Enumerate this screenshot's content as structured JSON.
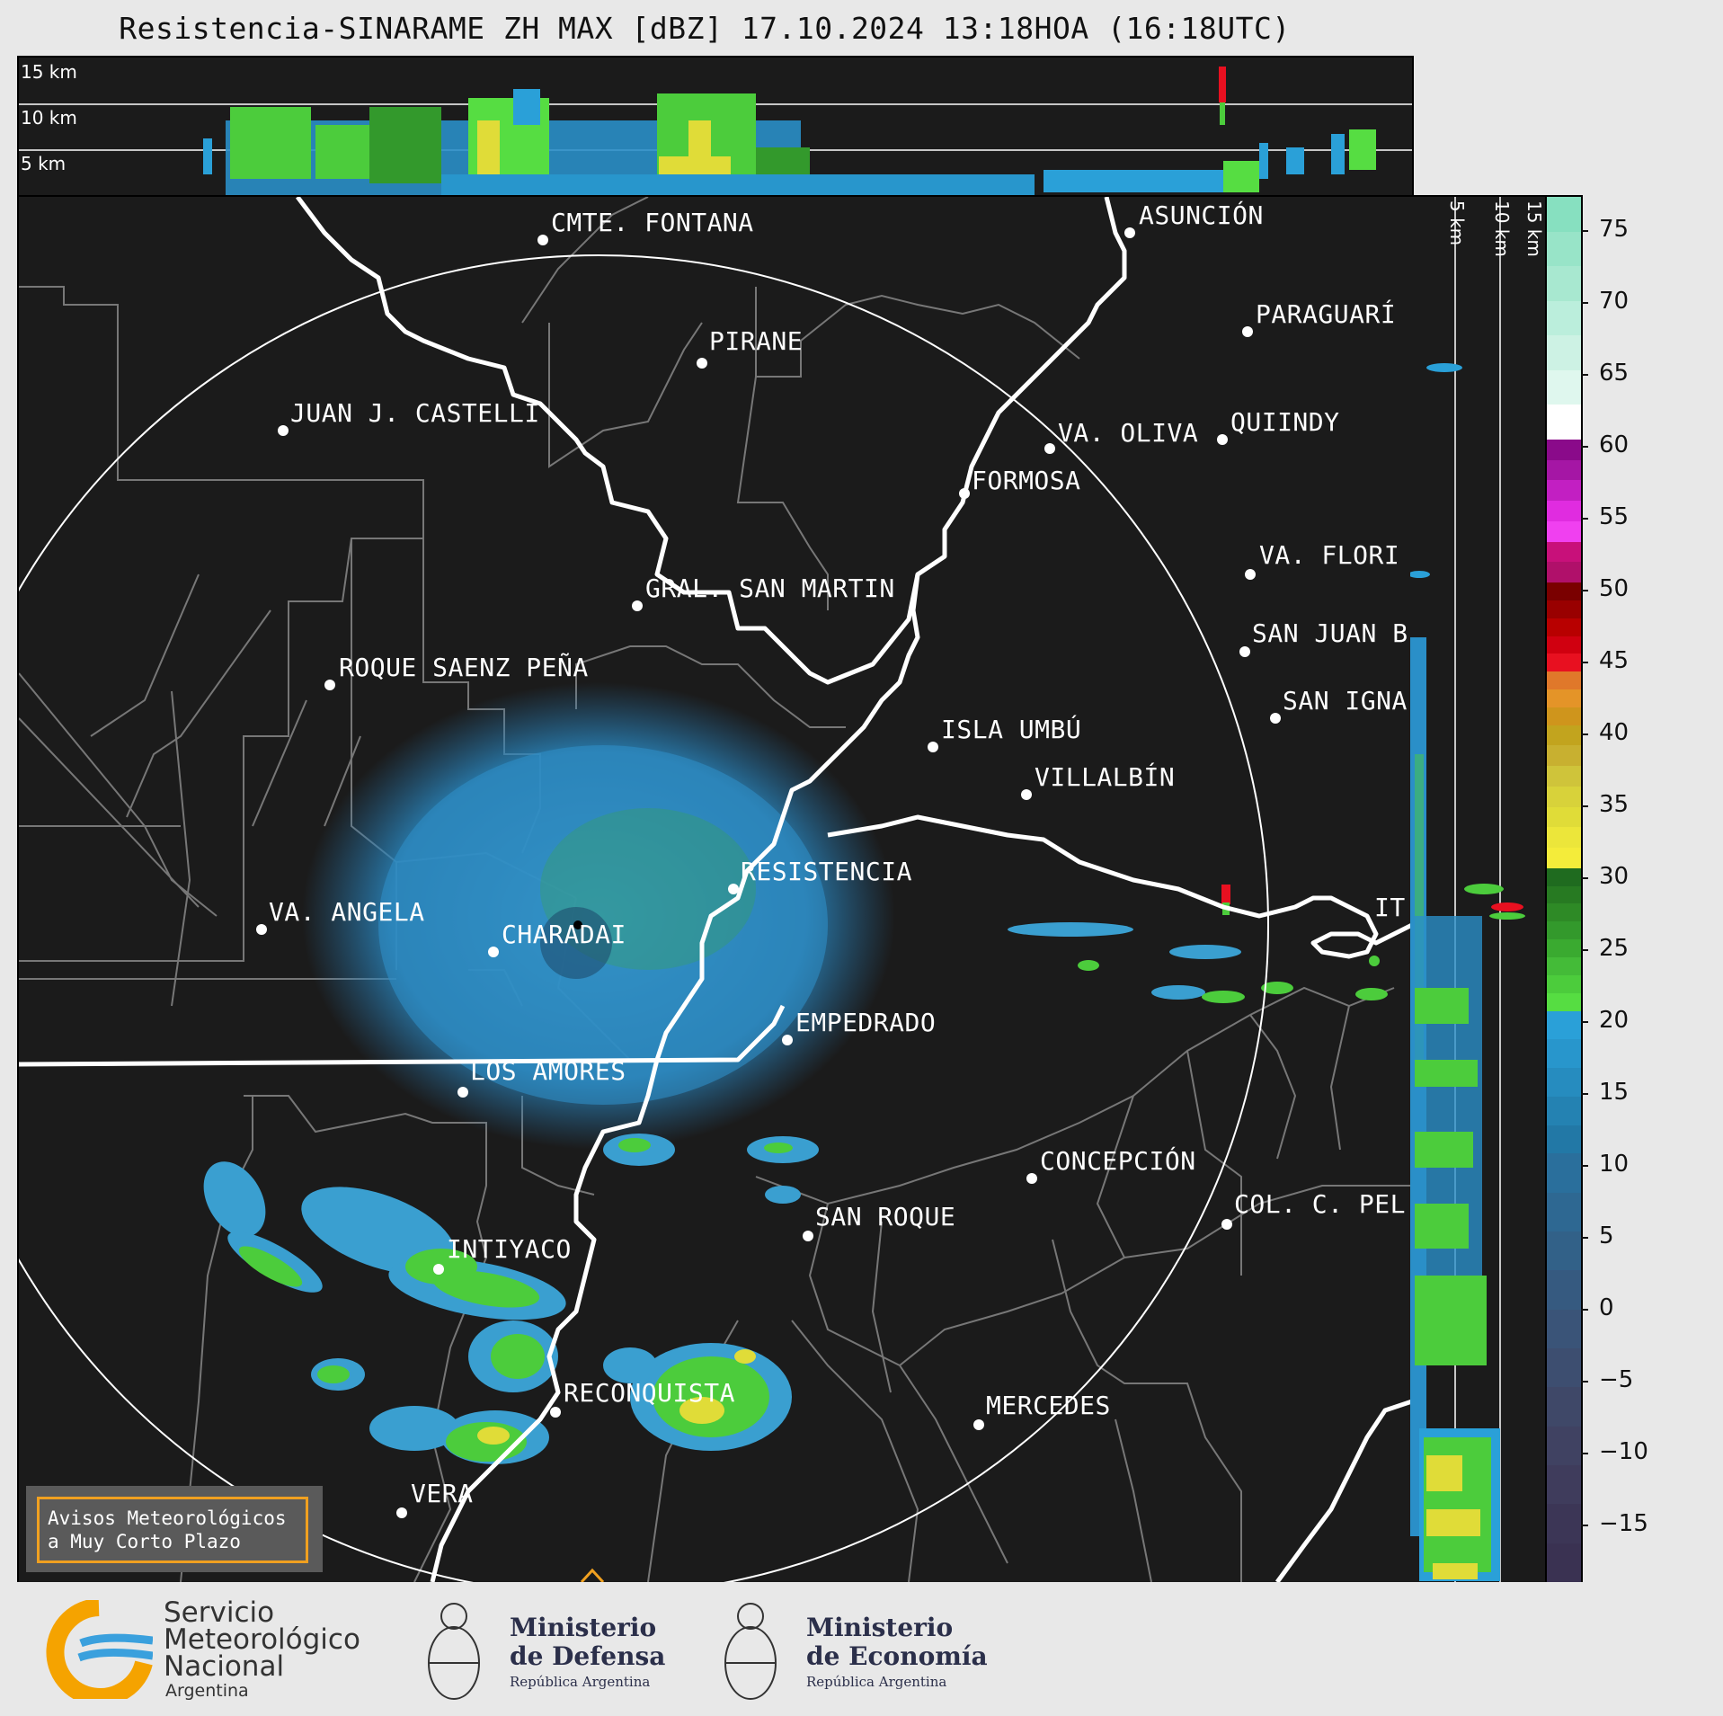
{
  "title": "Resistencia-SINARAME ZH MAX [dBZ] 17.10.2024 13:18HOA (16:18UTC)",
  "xsec_top": {
    "labels": [
      "15 km",
      "10 km",
      "5 km"
    ]
  },
  "xsec_right": {
    "labels": [
      "5 km",
      "10 km",
      "15 km"
    ]
  },
  "colorbar": {
    "ticks": [
      "75",
      "70",
      "65",
      "60",
      "55",
      "50",
      "45",
      "40",
      "35",
      "30",
      "25",
      "20",
      "15",
      "10",
      "5",
      "0",
      "−5",
      "−10",
      "−15"
    ],
    "colors": {
      "band_75_60": [
        "#87e0c0",
        "#98e4c8",
        "#a8e8d0",
        "#bbeedc",
        "#cdf2e4",
        "#dff7ee",
        "#ffffff"
      ],
      "band_60_50": [
        "#8a0a8a",
        "#a516a5",
        "#c21fc2",
        "#e02ce0",
        "#f040f0",
        "#c8107a",
        "#b0106a"
      ],
      "band_50_40": [
        "#7a0000",
        "#990000",
        "#b80000",
        "#d00010",
        "#e81020",
        "#e0782a",
        "#e49428",
        "#cf951c"
      ],
      "band_40_30": [
        "#c2a41e",
        "#c8b030",
        "#cfc43a",
        "#d8d23a",
        "#e0dc38",
        "#ece63a",
        "#f4ec3a"
      ],
      "band_30_20": [
        "#1f6b1f",
        "#277a22",
        "#2e8a26",
        "#33992c",
        "#3aaa30",
        "#44bb38",
        "#4ccc3c",
        "#56dd42"
      ],
      "band_20_10": [
        "#2aa0d8",
        "#2896cc",
        "#268cbf",
        "#2482b2",
        "#2278a6"
      ],
      "band_10_m20": [
        "#2a6f9c",
        "#2e6892",
        "#326188",
        "#365a80",
        "#3a5478",
        "#3d4e70",
        "#3f4868",
        "#404262",
        "#3f3c5c",
        "#3c3656",
        "#3a3252"
      ]
    }
  },
  "cities": [
    "CMTE. FONTANA",
    "ASUNCIÓN",
    "PIRANE",
    "PARAGUARÍ",
    "JUAN J. CASTELLI",
    "VA. OLIVA",
    "QUIINDY",
    "FORMOSA",
    "VA. FLORI",
    "GRAL. SAN MARTIN",
    "SAN JUAN B",
    "ROQUE SAENZ PEÑA",
    "SAN IGNA",
    "ISLA UMBÚ",
    "VILLALBÍN",
    "RESISTENCIA",
    "IT",
    "VA. ANGELA",
    "CHARADAI",
    "EMPEDRADO",
    "LOS AMORES",
    "CONCEPCIÓN",
    "SAN ROQUE",
    "COL. C. PEL",
    "INTIYACO",
    "RECONQUISTA",
    "MERCEDES",
    "VERA"
  ],
  "notice": {
    "line1": "Avisos Meteorológicos",
    "line2": "a Muy Corto Plazo"
  },
  "footer": {
    "smn": {
      "line1": "Servicio",
      "line2": "Meteorológico",
      "line3": "Nacional",
      "line4": "Argentina"
    },
    "defensa": {
      "line1": "Ministerio",
      "line2": "de Defensa",
      "line3": "República Argentina"
    },
    "economia": {
      "line1": "Ministerio",
      "line2": "de Economía",
      "line3": "República Argentina"
    }
  }
}
